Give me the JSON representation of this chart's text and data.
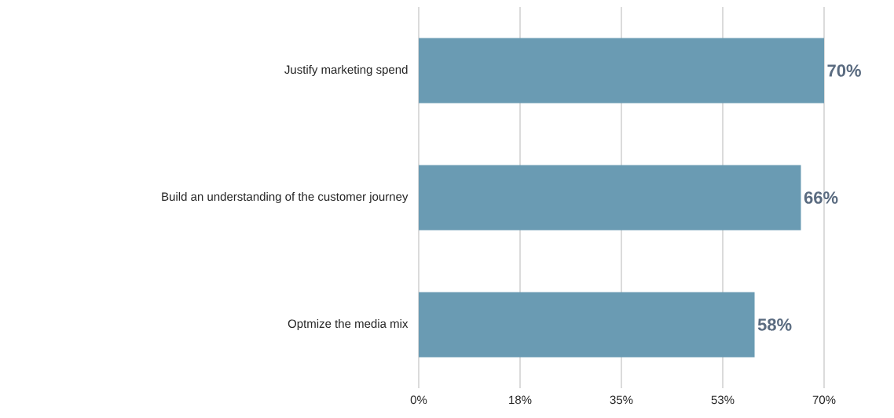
{
  "chart_data": {
    "type": "bar",
    "orientation": "horizontal",
    "categories": [
      "Justify marketing spend",
      "Build an understanding of the customer journey",
      "Optmize the media mix"
    ],
    "values": [
      70,
      66,
      58
    ],
    "value_labels": [
      "70%",
      "66%",
      "58%"
    ],
    "color": "#6a9bb3",
    "xlim": [
      0,
      70
    ],
    "xticks": [
      {
        "value": 0,
        "label": "0%"
      },
      {
        "value": 17.5,
        "label": "18%"
      },
      {
        "value": 35,
        "label": "35%"
      },
      {
        "value": 52.5,
        "label": "53%"
      },
      {
        "value": 70,
        "label": "70%"
      }
    ],
    "grid": "x"
  }
}
